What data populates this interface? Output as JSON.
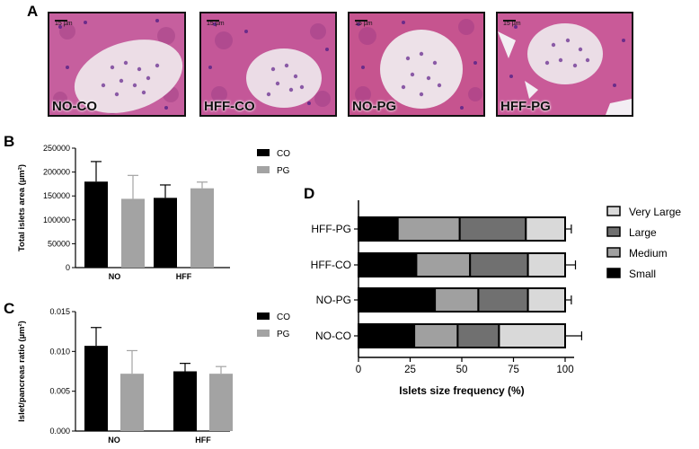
{
  "panels": {
    "a": "A",
    "b": "B",
    "c": "C",
    "d": "D"
  },
  "micrographs": [
    {
      "label": "NO-CO",
      "scale": "15 µm"
    },
    {
      "label": "HFF-CO",
      "scale": "15 µm"
    },
    {
      "label": "NO-PG",
      "scale": "15 µm"
    },
    {
      "label": "HFF-PG",
      "scale": "15 µm"
    }
  ],
  "colors": {
    "co": "#000000",
    "pg": "#a3a3a3",
    "small": "#000000",
    "medium": "#a0a0a0",
    "large": "#707070",
    "very_large": "#d9d9d9",
    "tissue": "#c45a9c",
    "islet": "#e8d8e4"
  },
  "chart_data": [
    {
      "id": "B",
      "type": "bar",
      "categories": [
        "NO",
        "HFF"
      ],
      "series": [
        {
          "name": "CO",
          "values": [
            180000,
            146000
          ],
          "errors": [
            42000,
            27000
          ]
        },
        {
          "name": "PG",
          "values": [
            144000,
            166000
          ],
          "errors": [
            49000,
            13000
          ]
        }
      ],
      "xlabel": "",
      "ylabel": "Total islets area (µm²)",
      "yticks": [
        "0",
        "50000",
        "100000",
        "150000",
        "200000",
        "250000"
      ],
      "ylim": [
        0,
        250000
      ],
      "legend": "top-right"
    },
    {
      "id": "C",
      "type": "bar",
      "categories": [
        "NO",
        "HFF"
      ],
      "series": [
        {
          "name": "CO",
          "values": [
            0.0107,
            0.0075
          ],
          "errors": [
            0.0023,
            0.001
          ]
        },
        {
          "name": "PG",
          "values": [
            0.0072,
            0.0072
          ],
          "errors": [
            0.0029,
            0.0009
          ]
        }
      ],
      "xlabel": "",
      "ylabel": "Islet/pancreas ratio (µm²)",
      "yticks": [
        "0.000",
        "0.005",
        "0.010",
        "0.015"
      ],
      "ylim": [
        0,
        0.015
      ],
      "legend": "top-right"
    },
    {
      "id": "D",
      "type": "bar",
      "orientation": "horizontal-stacked",
      "categories": [
        "HFF-PG",
        "HFF-CO",
        "NO-PG",
        "NO-CO"
      ],
      "series": [
        {
          "name": "Small",
          "values": [
            19,
            28,
            37,
            27
          ],
          "errors": [
            0,
            0,
            0,
            0
          ]
        },
        {
          "name": "Medium",
          "values": [
            30,
            26,
            21,
            21
          ],
          "errors": [
            2,
            4,
            4,
            3
          ]
        },
        {
          "name": "Large",
          "values": [
            32,
            28,
            24,
            20
          ],
          "errors": [
            6,
            3,
            8,
            3
          ]
        },
        {
          "name": "Very Large",
          "values": [
            19,
            18,
            18,
            32
          ],
          "errors": [
            3,
            5,
            3,
            8
          ]
        }
      ],
      "legend_order": [
        "Very Large",
        "Large",
        "Medium",
        "Small"
      ],
      "xlabel": "Islets size frequency (%)",
      "ylabel": "",
      "xticks": [
        "0",
        "25",
        "50",
        "75",
        "100"
      ],
      "xlim": [
        0,
        100
      ],
      "legend": "right"
    }
  ]
}
